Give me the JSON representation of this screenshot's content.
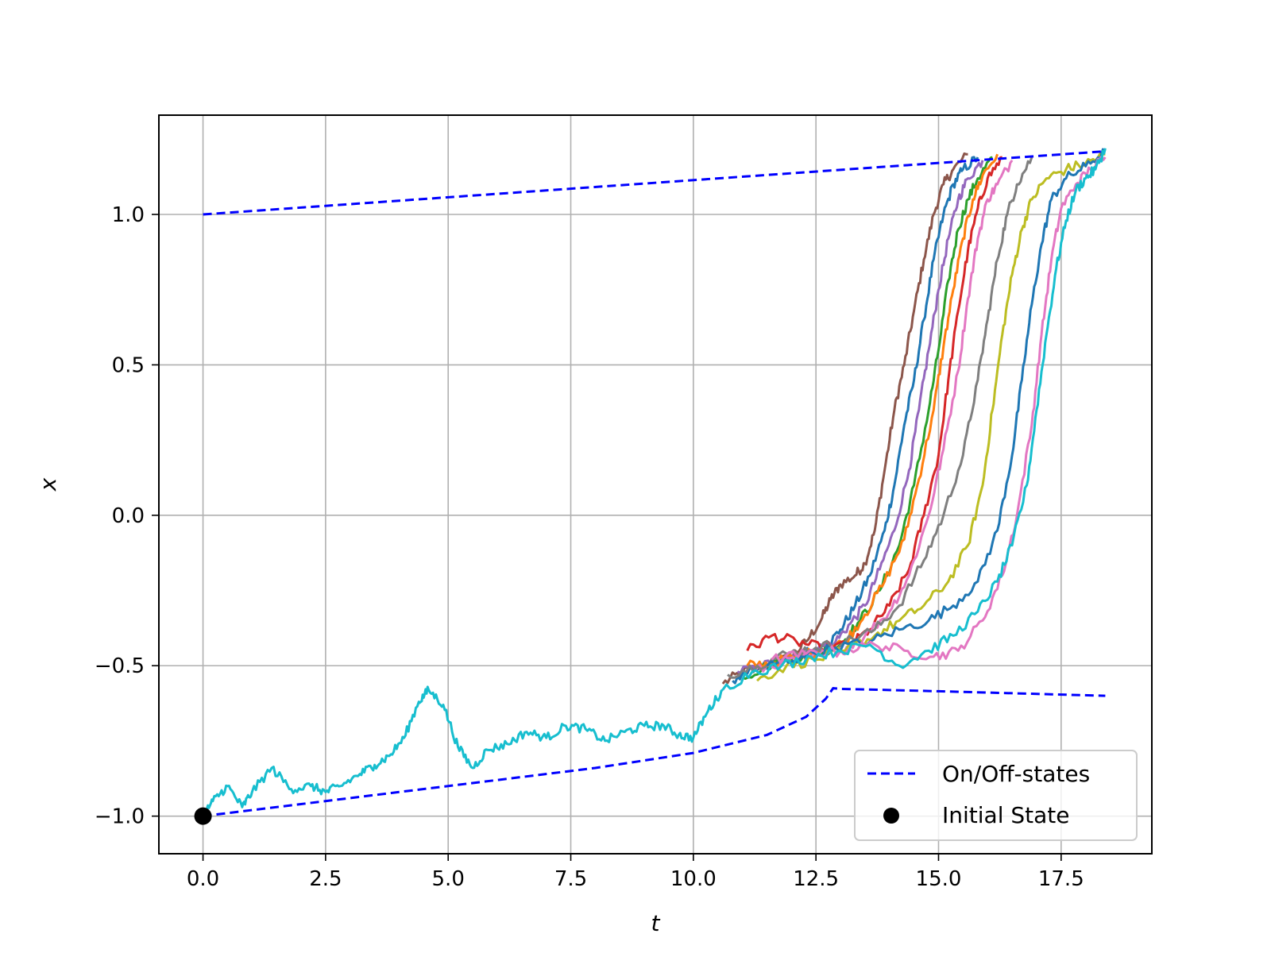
{
  "chart_data": {
    "type": "line",
    "title": "",
    "xlabel": "t",
    "ylabel": "x",
    "xlim": [
      -0.9,
      19.35
    ],
    "ylim": [
      -1.125,
      1.33
    ],
    "x_ticks": [
      0.0,
      2.5,
      5.0,
      7.5,
      10.0,
      12.5,
      15.0,
      17.5
    ],
    "x_tick_labels": [
      "0.0",
      "2.5",
      "5.0",
      "7.5",
      "10.0",
      "12.5",
      "15.0",
      "17.5"
    ],
    "y_ticks": [
      -1.0,
      -0.5,
      0.0,
      0.5,
      1.0
    ],
    "y_tick_labels": [
      "−1.0",
      "−0.5",
      "0.0",
      "0.5",
      "1.0"
    ],
    "grid": true,
    "legend_position": "lower-right",
    "legend": [
      {
        "label": "On/Off-states",
        "style": "dashed-line",
        "color": "#0000ff"
      },
      {
        "label": "Initial State",
        "style": "marker",
        "color": "#000000"
      }
    ],
    "on_off_states": {
      "color": "#0000ff",
      "on_state": {
        "x": [
          0.0,
          18.4
        ],
        "y": [
          1.0,
          1.21
        ]
      },
      "off_state": {
        "x": [
          0.0,
          2.0,
          4.0,
          6.0,
          8.0,
          10.0,
          11.5,
          12.3,
          12.7,
          12.85,
          13.0,
          15.0,
          18.4
        ],
        "y": [
          -1.0,
          -0.96,
          -0.92,
          -0.88,
          -0.84,
          -0.79,
          -0.73,
          -0.67,
          -0.61,
          -0.575,
          -0.577,
          -0.585,
          -0.6
        ]
      }
    },
    "initial_state": {
      "x": 0.0,
      "y": -1.0,
      "color": "#000000"
    },
    "trajectories": {
      "shared": {
        "color": "#17becf",
        "x": [
          0.0,
          0.2,
          0.5,
          0.8,
          1.0,
          1.4,
          1.8,
          2.2,
          2.5,
          2.8,
          3.2,
          3.5,
          3.8,
          4.1,
          4.4,
          4.6,
          4.9,
          5.2,
          5.5,
          5.8,
          6.2,
          6.6,
          7.0,
          7.4,
          7.8,
          8.2,
          8.6,
          9.0,
          9.4,
          9.7,
          10.0,
          10.3,
          10.6
        ],
        "y": [
          -1.0,
          -0.95,
          -0.9,
          -0.97,
          -0.92,
          -0.84,
          -0.91,
          -0.9,
          -0.92,
          -0.9,
          -0.86,
          -0.83,
          -0.8,
          -0.74,
          -0.62,
          -0.58,
          -0.63,
          -0.77,
          -0.84,
          -0.78,
          -0.76,
          -0.72,
          -0.74,
          -0.7,
          -0.71,
          -0.75,
          -0.72,
          -0.7,
          -0.7,
          -0.73,
          -0.74,
          -0.65,
          -0.58
        ]
      },
      "branches": [
        {
          "color": "#8c564b",
          "x": [
            10.6,
            11.0,
            11.5,
            12.0,
            12.3,
            12.6,
            12.8,
            13.0,
            13.3,
            13.5,
            13.7,
            13.9,
            14.1,
            14.3,
            14.5,
            14.7,
            14.9,
            15.1,
            15.3,
            15.6
          ],
          "y": [
            -0.56,
            -0.52,
            -0.5,
            -0.47,
            -0.42,
            -0.35,
            -0.28,
            -0.23,
            -0.2,
            -0.16,
            -0.05,
            0.15,
            0.35,
            0.5,
            0.68,
            0.85,
            1.0,
            1.1,
            1.15,
            1.2
          ]
        },
        {
          "color": "#1f77b4",
          "x": [
            10.8,
            11.2,
            11.7,
            12.2,
            12.7,
            13.0,
            13.3,
            13.6,
            13.9,
            14.1,
            14.3,
            14.5,
            14.7,
            14.9,
            15.1,
            15.3,
            15.5,
            15.8
          ],
          "y": [
            -0.55,
            -0.51,
            -0.49,
            -0.46,
            -0.44,
            -0.38,
            -0.3,
            -0.2,
            -0.05,
            0.1,
            0.3,
            0.45,
            0.65,
            0.85,
            1.0,
            1.1,
            1.15,
            1.19
          ]
        },
        {
          "color": "#9467bd",
          "x": [
            10.9,
            11.4,
            11.9,
            12.4,
            12.9,
            13.2,
            13.5,
            13.8,
            14.1,
            14.4,
            14.6,
            14.8,
            15.0,
            15.2,
            15.4,
            15.6,
            15.9
          ],
          "y": [
            -0.52,
            -0.5,
            -0.47,
            -0.45,
            -0.42,
            -0.36,
            -0.3,
            -0.18,
            -0.05,
            0.15,
            0.35,
            0.55,
            0.75,
            0.92,
            1.05,
            1.12,
            1.18
          ]
        },
        {
          "color": "#2ca02c",
          "x": [
            11.0,
            11.5,
            12.0,
            12.5,
            13.0,
            13.4,
            13.8,
            14.2,
            14.5,
            14.8,
            15.0,
            15.2,
            15.4,
            15.6,
            15.8,
            16.1
          ],
          "y": [
            -0.54,
            -0.5,
            -0.48,
            -0.46,
            -0.43,
            -0.35,
            -0.25,
            -0.1,
            0.1,
            0.35,
            0.55,
            0.78,
            0.95,
            1.05,
            1.12,
            1.19
          ]
        },
        {
          "color": "#ff7f0e",
          "x": [
            11.1,
            11.6,
            12.1,
            12.6,
            13.1,
            13.5,
            13.9,
            14.3,
            14.6,
            14.9,
            15.1,
            15.3,
            15.5,
            15.7,
            15.9,
            16.2
          ],
          "y": [
            -0.5,
            -0.49,
            -0.47,
            -0.45,
            -0.42,
            -0.33,
            -0.22,
            -0.08,
            0.12,
            0.35,
            0.56,
            0.75,
            0.92,
            1.05,
            1.13,
            1.2
          ]
        },
        {
          "color": "#d62728",
          "x": [
            11.1,
            11.6,
            12.1,
            12.6,
            13.2,
            13.6,
            14.0,
            14.4,
            14.7,
            15.0,
            15.2,
            15.4,
            15.6,
            15.8,
            16.0,
            16.3
          ],
          "y": [
            -0.45,
            -0.4,
            -0.42,
            -0.44,
            -0.43,
            -0.38,
            -0.3,
            -0.18,
            0.0,
            0.2,
            0.45,
            0.68,
            0.88,
            1.02,
            1.12,
            1.19
          ]
        },
        {
          "color": "#e377c2",
          "x": [
            11.2,
            11.8,
            12.4,
            13.0,
            13.5,
            14.0,
            14.4,
            14.8,
            15.1,
            15.4,
            15.6,
            15.8,
            16.0,
            16.2,
            16.5
          ],
          "y": [
            -0.52,
            -0.49,
            -0.47,
            -0.45,
            -0.4,
            -0.32,
            -0.2,
            0.0,
            0.22,
            0.48,
            0.72,
            0.92,
            1.05,
            1.1,
            1.18
          ]
        },
        {
          "color": "#7f7f7f",
          "x": [
            10.7,
            11.3,
            11.9,
            12.5,
            13.1,
            13.7,
            14.2,
            14.7,
            15.1,
            15.5,
            15.8,
            16.0,
            16.2,
            16.4,
            16.6,
            16.9
          ],
          "y": [
            -0.53,
            -0.5,
            -0.46,
            -0.44,
            -0.42,
            -0.38,
            -0.3,
            -0.15,
            0.0,
            0.2,
            0.45,
            0.65,
            0.85,
            1.0,
            1.1,
            1.19
          ]
        },
        {
          "color": "#bcbd22",
          "x": [
            11.3,
            11.9,
            12.5,
            13.1,
            13.7,
            14.2,
            14.7,
            15.2,
            15.6,
            15.9,
            16.1,
            16.3,
            16.5,
            16.7,
            16.9,
            17.2,
            17.6,
            18.0,
            18.4
          ],
          "y": [
            -0.55,
            -0.5,
            -0.48,
            -0.45,
            -0.4,
            -0.35,
            -0.3,
            -0.22,
            -0.1,
            0.1,
            0.35,
            0.6,
            0.8,
            0.95,
            1.05,
            1.12,
            1.15,
            1.17,
            1.2
          ]
        },
        {
          "color": "#1f77b4",
          "x": [
            11.5,
            12.2,
            12.9,
            13.6,
            14.2,
            14.8,
            15.3,
            15.8,
            16.2,
            16.5,
            16.7,
            16.9,
            17.1,
            17.3,
            17.6,
            18.0,
            18.4
          ],
          "y": [
            -0.5,
            -0.47,
            -0.44,
            -0.42,
            -0.38,
            -0.35,
            -0.3,
            -0.22,
            -0.05,
            0.2,
            0.45,
            0.7,
            0.9,
            1.05,
            1.12,
            1.16,
            1.21
          ]
        },
        {
          "color": "#e377c2",
          "x": [
            11.6,
            12.3,
            13.0,
            13.7,
            14.3,
            14.9,
            15.4,
            15.9,
            16.3,
            16.6,
            16.9,
            17.1,
            17.3,
            17.5,
            17.8,
            18.1,
            18.4
          ],
          "y": [
            -0.48,
            -0.46,
            -0.45,
            -0.43,
            -0.45,
            -0.47,
            -0.45,
            -0.35,
            -0.2,
            0.0,
            0.3,
            0.6,
            0.85,
            1.02,
            1.1,
            1.15,
            1.19
          ]
        },
        {
          "color": "#17becf",
          "x": [
            10.6,
            11.2,
            11.8,
            12.4,
            13.0,
            13.6,
            14.2,
            14.8,
            15.3,
            15.8,
            16.2,
            16.5,
            16.8,
            17.0,
            17.2,
            17.4,
            17.6,
            17.8,
            18.0,
            18.2,
            18.4
          ],
          "y": [
            -0.58,
            -0.52,
            -0.5,
            -0.47,
            -0.45,
            -0.43,
            -0.5,
            -0.45,
            -0.4,
            -0.32,
            -0.22,
            -0.1,
            0.1,
            0.35,
            0.6,
            0.82,
            0.98,
            1.08,
            1.12,
            1.15,
            1.22
          ]
        }
      ]
    }
  }
}
